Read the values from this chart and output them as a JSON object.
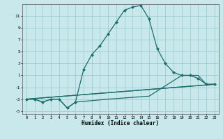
{
  "xlabel": "Humidex (Indice chaleur)",
  "xlim": [
    -0.5,
    23.5
  ],
  "ylim": [
    -5.5,
    13
  ],
  "yticks": [
    -5,
    -3,
    -1,
    1,
    3,
    5,
    7,
    9,
    11
  ],
  "xticks": [
    0,
    1,
    2,
    3,
    4,
    5,
    6,
    7,
    8,
    9,
    10,
    11,
    12,
    13,
    14,
    15,
    16,
    17,
    18,
    19,
    20,
    21,
    22,
    23
  ],
  "bg_color": "#c8e8ec",
  "grid_color": "#9ecdd4",
  "line_color": "#1a6e6a",
  "line1_x": [
    0,
    1,
    2,
    3,
    4,
    5,
    6,
    7,
    8,
    9,
    10,
    11,
    12,
    13,
    14,
    15,
    16,
    17,
    18,
    19,
    20,
    21,
    22,
    23
  ],
  "line1_y": [
    -3,
    -3,
    -3.5,
    -3,
    -3,
    -4.5,
    -3.5,
    2,
    4.5,
    6.0,
    8.0,
    10.0,
    12.0,
    12.5,
    12.8,
    10.5,
    5.5,
    3.0,
    1.5,
    1.0,
    1.0,
    0.5,
    -0.5,
    -0.5
  ],
  "line2_x": [
    0,
    1,
    2,
    3,
    4,
    5,
    6,
    10,
    15,
    19,
    20,
    21,
    22,
    23
  ],
  "line2_y": [
    -3,
    -3,
    -3.5,
    -3,
    -3,
    -4.5,
    -3.5,
    -3.0,
    -2.5,
    1.0,
    1.0,
    1.0,
    -0.5,
    -0.5
  ],
  "line3_x": [
    0,
    23
  ],
  "line3_y": [
    -3,
    -0.5
  ],
  "line4_x": [
    0,
    23
  ],
  "line4_y": [
    -3,
    -0.5
  ]
}
